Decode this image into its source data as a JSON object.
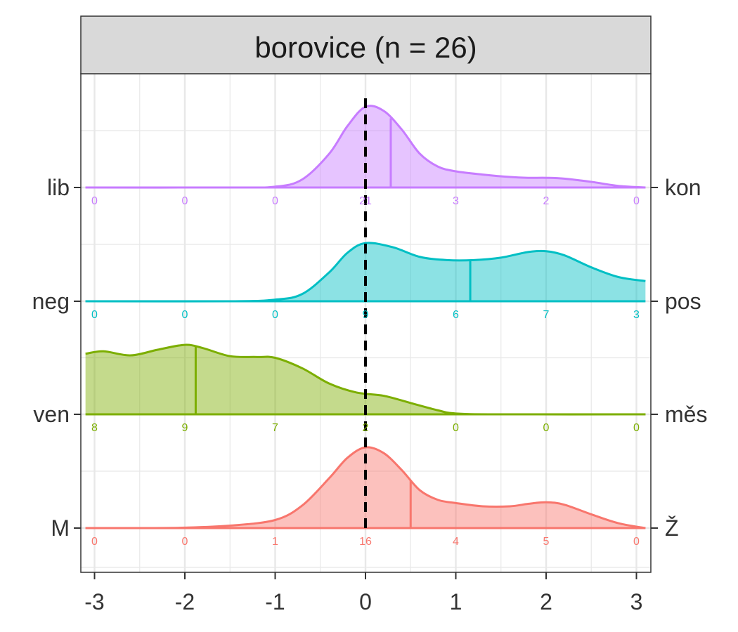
{
  "chart_data": {
    "type": "area",
    "title": "borovice (n = 26)",
    "x_ticks": [
      -3,
      -2,
      -1,
      0,
      1,
      2,
      3
    ],
    "xlim": [
      -3.15,
      3.15
    ],
    "grid": true,
    "reference_line_x": 0,
    "series": [
      {
        "left_label": "M",
        "right_label": "Ž",
        "color": "#F8766D",
        "marker_x": 0.5,
        "count_x": [
          -3,
          -2,
          -1,
          0,
          1,
          2,
          3
        ],
        "counts": [
          "0",
          "0",
          "1",
          "16",
          "4",
          "5",
          "0"
        ],
        "density": [
          [
            -3.1,
            0.0
          ],
          [
            -2.5,
            0.0
          ],
          [
            -2.0,
            0.005
          ],
          [
            -1.5,
            0.03
          ],
          [
            -1.0,
            0.1
          ],
          [
            -0.7,
            0.28
          ],
          [
            -0.4,
            0.62
          ],
          [
            -0.2,
            0.87
          ],
          [
            0.0,
            1.0
          ],
          [
            0.2,
            0.93
          ],
          [
            0.4,
            0.72
          ],
          [
            0.6,
            0.47
          ],
          [
            0.8,
            0.35
          ],
          [
            1.0,
            0.31
          ],
          [
            1.3,
            0.27
          ],
          [
            1.6,
            0.27
          ],
          [
            1.8,
            0.3
          ],
          [
            2.0,
            0.32
          ],
          [
            2.2,
            0.29
          ],
          [
            2.5,
            0.17
          ],
          [
            2.8,
            0.06
          ],
          [
            3.1,
            0.0
          ]
        ]
      },
      {
        "left_label": "ven",
        "right_label": "měs",
        "color": "#7CAE00",
        "marker_x": -1.88,
        "count_x": [
          -3,
          -2,
          -1,
          0,
          1,
          2,
          3
        ],
        "counts": [
          "8",
          "9",
          "7",
          "2",
          "0",
          "0",
          "0"
        ],
        "density": [
          [
            -3.1,
            0.75
          ],
          [
            -2.9,
            0.78
          ],
          [
            -2.6,
            0.73
          ],
          [
            -2.3,
            0.8
          ],
          [
            -2.0,
            0.86
          ],
          [
            -1.8,
            0.82
          ],
          [
            -1.5,
            0.72
          ],
          [
            -1.2,
            0.71
          ],
          [
            -1.0,
            0.7
          ],
          [
            -0.7,
            0.57
          ],
          [
            -0.4,
            0.38
          ],
          [
            -0.1,
            0.27
          ],
          [
            0.2,
            0.23
          ],
          [
            0.5,
            0.14
          ],
          [
            0.8,
            0.05
          ],
          [
            1.0,
            0.01
          ],
          [
            1.5,
            0.0
          ],
          [
            3.1,
            0.0
          ]
        ]
      },
      {
        "left_label": "neg",
        "right_label": "pos",
        "color": "#00BFC4",
        "marker_x": 1.16,
        "count_x": [
          -3,
          -2,
          -1,
          0,
          1,
          2,
          3
        ],
        "counts": [
          "0",
          "0",
          "0",
          "9",
          "6",
          "7",
          "3"
        ],
        "density": [
          [
            -3.1,
            0.0
          ],
          [
            -1.5,
            0.0
          ],
          [
            -1.0,
            0.02
          ],
          [
            -0.7,
            0.09
          ],
          [
            -0.4,
            0.36
          ],
          [
            -0.2,
            0.6
          ],
          [
            0.0,
            0.72
          ],
          [
            0.3,
            0.67
          ],
          [
            0.6,
            0.55
          ],
          [
            0.9,
            0.51
          ],
          [
            1.2,
            0.51
          ],
          [
            1.5,
            0.54
          ],
          [
            1.8,
            0.61
          ],
          [
            2.0,
            0.62
          ],
          [
            2.2,
            0.57
          ],
          [
            2.5,
            0.42
          ],
          [
            2.8,
            0.3
          ],
          [
            3.1,
            0.25
          ]
        ]
      },
      {
        "left_label": "lib",
        "right_label": "kon",
        "color": "#C77CFF",
        "marker_x": 0.28,
        "count_x": [
          -3,
          -2,
          -1,
          0,
          1,
          2,
          3
        ],
        "counts": [
          "0",
          "0",
          "0",
          "21",
          "3",
          "2",
          "0"
        ],
        "density": [
          [
            -3.1,
            0.0
          ],
          [
            -1.5,
            0.0
          ],
          [
            -1.0,
            0.01
          ],
          [
            -0.7,
            0.1
          ],
          [
            -0.4,
            0.42
          ],
          [
            -0.2,
            0.76
          ],
          [
            0.0,
            1.0
          ],
          [
            0.2,
            0.95
          ],
          [
            0.4,
            0.72
          ],
          [
            0.6,
            0.42
          ],
          [
            0.8,
            0.26
          ],
          [
            1.0,
            0.2
          ],
          [
            1.3,
            0.16
          ],
          [
            1.6,
            0.13
          ],
          [
            1.8,
            0.12
          ],
          [
            2.0,
            0.12
          ],
          [
            2.2,
            0.11
          ],
          [
            2.5,
            0.07
          ],
          [
            2.8,
            0.02
          ],
          [
            3.1,
            0.0
          ]
        ]
      }
    ]
  }
}
